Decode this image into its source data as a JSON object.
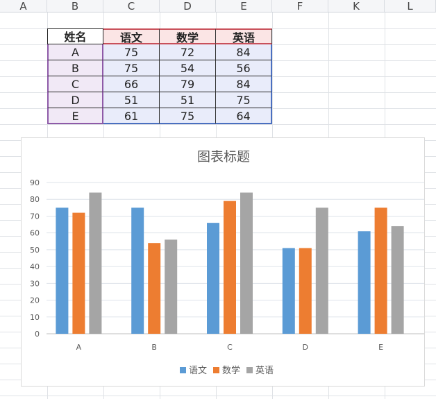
{
  "columns": [
    "A",
    "B",
    "C",
    "D",
    "E",
    "F",
    "K",
    "L"
  ],
  "table": {
    "headers": [
      "姓名",
      "语文",
      "数学",
      "英语"
    ],
    "rows": [
      [
        "A",
        "75",
        "72",
        "84"
      ],
      [
        "B",
        "75",
        "54",
        "56"
      ],
      [
        "C",
        "66",
        "79",
        "84"
      ],
      [
        "D",
        "51",
        "51",
        "75"
      ],
      [
        "E",
        "61",
        "75",
        "64"
      ]
    ]
  },
  "chart_data": {
    "type": "bar",
    "title": "图表标题",
    "categories": [
      "A",
      "B",
      "C",
      "D",
      "E"
    ],
    "series": [
      {
        "name": "语文",
        "values": [
          75,
          75,
          66,
          51,
          61
        ],
        "color": "#5b9bd5"
      },
      {
        "name": "数学",
        "values": [
          72,
          54,
          79,
          51,
          75
        ],
        "color": "#ed7d31"
      },
      {
        "name": "英语",
        "values": [
          84,
          56,
          84,
          75,
          64
        ],
        "color": "#a5a5a5"
      }
    ],
    "ylim": [
      0,
      90
    ],
    "yticks": [
      0,
      10,
      20,
      30,
      40,
      50,
      60,
      70,
      80,
      90
    ],
    "grid": true,
    "legend": "bottom"
  }
}
